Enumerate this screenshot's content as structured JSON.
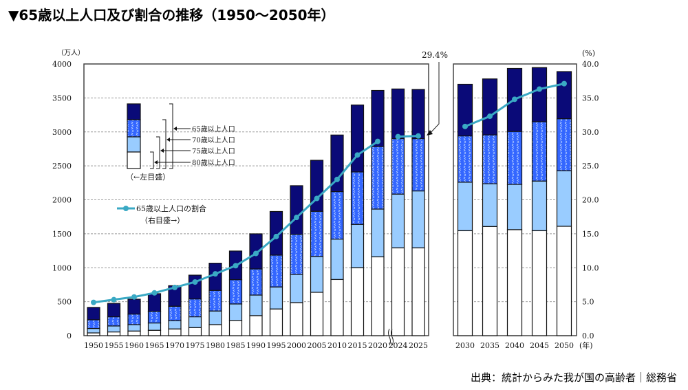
{
  "title": "▼65歳以上人口及び割合の推移（1950〜2050年）",
  "source": "出典：統計からみた我が国の高齢者｜総務省",
  "chart_data": {
    "type": "bar",
    "subtype": "stacked bar with line (dual axis)",
    "title": "65歳以上人口及び割合の推移（1950〜2050年）",
    "left_axis": {
      "unit_label": "（万人）",
      "range": [
        0,
        4000
      ],
      "ticks": [
        0,
        500,
        1000,
        1500,
        2000,
        2500,
        3000,
        3500,
        4000
      ]
    },
    "right_axis": {
      "unit_label": "(%)",
      "range": [
        0,
        40
      ],
      "ticks": [
        "0.0",
        "5.0",
        "10.0",
        "15.0",
        "20.0",
        "25.0",
        "30.0",
        "35.0",
        "40.0"
      ]
    },
    "x_unit_label": "(年)",
    "grid": "horizontal dashed",
    "axis_break_between": [
      "2020",
      "2024"
    ],
    "panels": [
      {
        "categories": [
          "1950",
          "1955",
          "1960",
          "1965",
          "1970",
          "1975",
          "1980",
          "1985",
          "1990",
          "1995",
          "2000",
          "2005",
          "2010",
          "2015",
          "2020",
          "2024",
          "2025"
        ]
      },
      {
        "categories": [
          "2030",
          "2035",
          "2040",
          "2045",
          "2050"
        ]
      }
    ],
    "categories": [
      "1950",
      "1955",
      "1960",
      "1965",
      "1970",
      "1975",
      "1980",
      "1985",
      "1990",
      "1995",
      "2000",
      "2005",
      "2010",
      "2015",
      "2020",
      "2024",
      "2025",
      "2030",
      "2035",
      "2040",
      "2045",
      "2050"
    ],
    "series": [
      {
        "name": "65歳以上人口",
        "axis": "left",
        "color": "#0a0a78",
        "values": [
          416,
          476,
          537,
          618,
          736,
          891,
          1067,
          1246,
          1499,
          1828,
          2208,
          2582,
          2954,
          3396,
          3610,
          3632,
          3625,
          3701,
          3780,
          3934,
          3947,
          3888
        ]
      },
      {
        "name": "70歳以上人口",
        "axis": "left",
        "color": "#3366ff",
        "values": [
          233,
          277,
          317,
          358,
          432,
          540,
          665,
          823,
          982,
          1185,
          1492,
          1830,
          2120,
          2410,
          2784,
          2900,
          2900,
          2940,
          2955,
          3005,
          3149,
          3193
        ]
      },
      {
        "name": "75歳以上人口",
        "axis": "left",
        "color": "#99ccff",
        "values": [
          105,
          142,
          162,
          186,
          219,
          277,
          362,
          466,
          597,
          716,
          901,
          1165,
          1421,
          1637,
          1863,
          2083,
          2130,
          2259,
          2236,
          2227,
          2275,
          2427
        ]
      },
      {
        "name": "80歳以上人口",
        "axis": "left",
        "color": "#ffffff",
        "values": [
          40,
          54,
          67,
          78,
          98,
          118,
          162,
          223,
          294,
          392,
          486,
          638,
          826,
          999,
          1160,
          1292,
          1292,
          1545,
          1606,
          1560,
          1545,
          1610
        ]
      },
      {
        "name": "65歳以上人口の割合",
        "axis": "right",
        "type": "line",
        "color": "#3aa9c4",
        "values": [
          4.9,
          5.3,
          5.7,
          6.3,
          7.1,
          7.9,
          9.1,
          10.3,
          12.1,
          14.6,
          17.4,
          20.2,
          23.0,
          26.6,
          28.6,
          29.3,
          29.4,
          30.8,
          32.3,
          34.8,
          36.3,
          37.1
        ]
      }
    ],
    "annotation": "29.4%",
    "legend": {
      "bar_items": [
        "65歳以上人口",
        "70歳以上人口",
        "75歳以上人口",
        "80歳以上人口"
      ],
      "bar_axis_note": "（←左目盛）",
      "line_item": "65歳以上人口の割合",
      "line_axis_note": "（右目盛→）",
      "placement": "upper-left"
    }
  }
}
